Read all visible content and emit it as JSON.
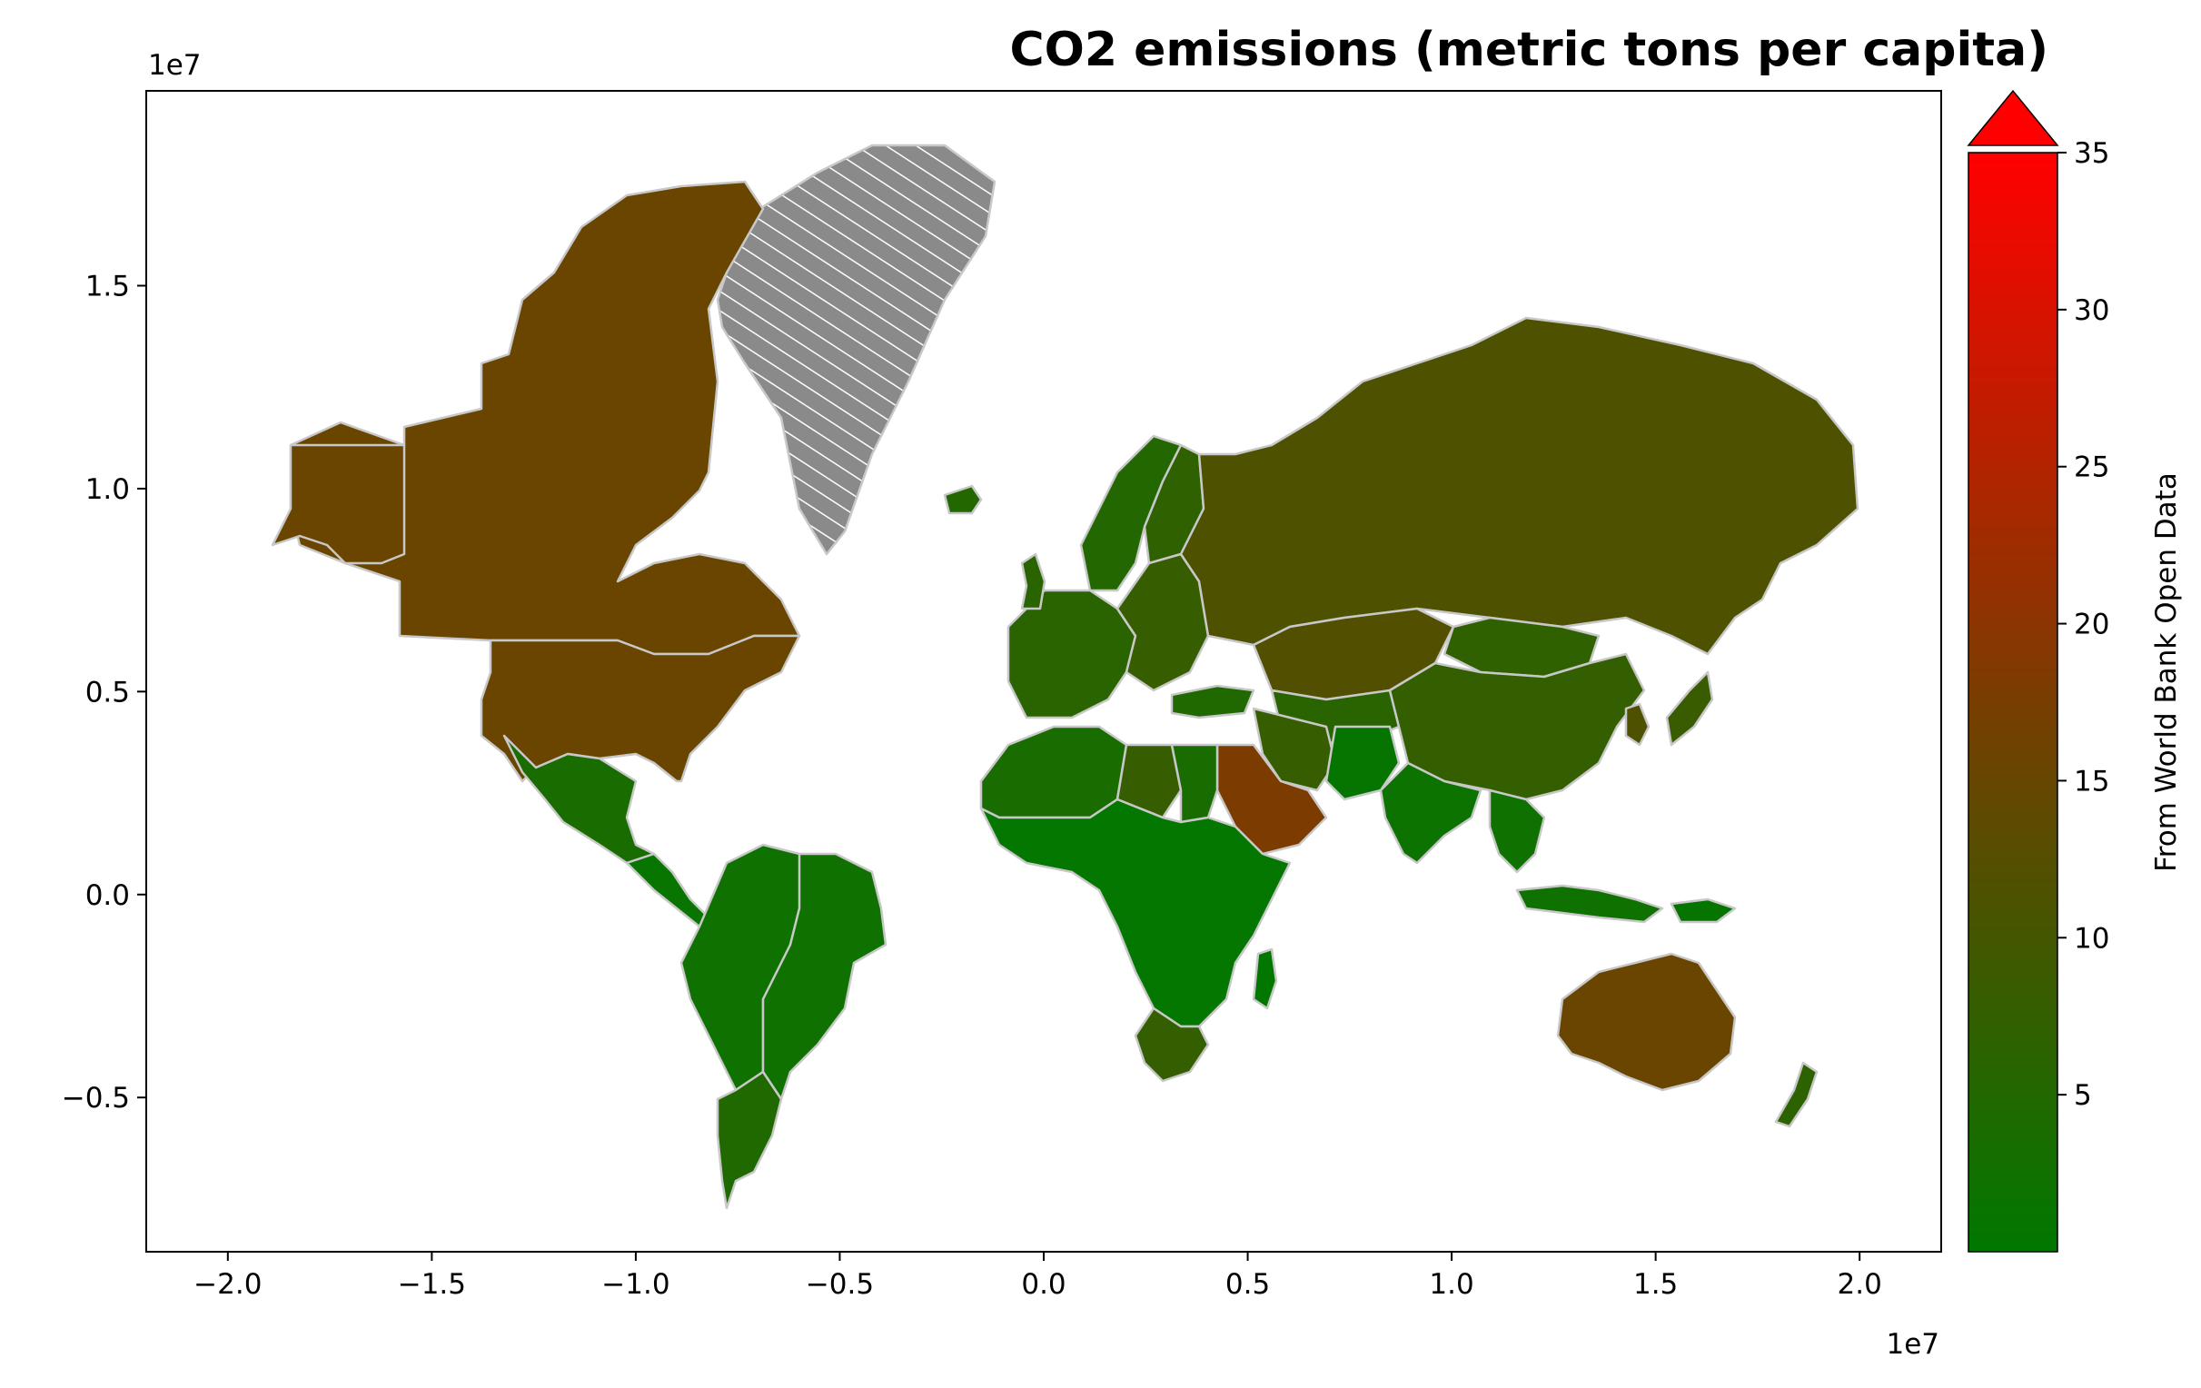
{
  "chart_data": {
    "type": "choropleth",
    "title": "CO2 emissions (metric tons per capita)",
    "colorbar_label": "From World Bank Open Data",
    "colorbar": {
      "min": 0,
      "max": 35,
      "ticks": [
        "5",
        "10",
        "15",
        "20",
        "25",
        "30",
        "35"
      ],
      "extend": "max",
      "colors": [
        "#007800",
        "#6b4400",
        "#ff0000"
      ]
    },
    "x_axis": {
      "ticks": [
        "−2.0",
        "−1.5",
        "−1.0",
        "−0.5",
        "0.0",
        "0.5",
        "1.0",
        "1.5",
        "2.0"
      ],
      "multiplier": "1e7"
    },
    "y_axis": {
      "ticks": [
        "−0.5",
        "0.0",
        "0.5",
        "1.0",
        "1.5"
      ],
      "multiplier": "1e7"
    },
    "missing_data_style": "gray with white diagonal hatching",
    "regions": [
      {
        "name": "Canada",
        "value": 15.5
      },
      {
        "name": "United States",
        "value": 15.5
      },
      {
        "name": "Greenland",
        "value": null
      },
      {
        "name": "Mexico",
        "value": 3.6
      },
      {
        "name": "Central America",
        "value": 1.0
      },
      {
        "name": "Brazil",
        "value": 2.2
      },
      {
        "name": "South America (west)",
        "value": 2.0
      },
      {
        "name": "Argentina & Chile",
        "value": 4.5
      },
      {
        "name": "Iceland",
        "value": 5.0
      },
      {
        "name": "Norway & Sweden",
        "value": 5.0
      },
      {
        "name": "Finland",
        "value": 7.0
      },
      {
        "name": "Western Europe",
        "value": 6.0
      },
      {
        "name": "Eastern Europe",
        "value": 8.0
      },
      {
        "name": "Russia",
        "value": 11.5
      },
      {
        "name": "Kazakhstan",
        "value": 12.0
      },
      {
        "name": "Central Asia",
        "value": 6.0
      },
      {
        "name": "Mongolia",
        "value": 7.0
      },
      {
        "name": "China",
        "value": 7.5
      },
      {
        "name": "Japan",
        "value": 8.5
      },
      {
        "name": "Korea",
        "value": 11.5
      },
      {
        "name": "Turkey",
        "value": 4.5
      },
      {
        "name": "Iran",
        "value": 8.0
      },
      {
        "name": "Saudi Arabia & Gulf",
        "value": 18.0
      },
      {
        "name": "India",
        "value": 1.8
      },
      {
        "name": "Pakistan & Afghanistan",
        "value": 0.9
      },
      {
        "name": "Southeast Asia",
        "value": 2.0
      },
      {
        "name": "Indonesia",
        "value": 2.2
      },
      {
        "name": "Papua New Guinea",
        "value": 0.8
      },
      {
        "name": "Australia",
        "value": 15.5
      },
      {
        "name": "New Zealand",
        "value": 6.5
      },
      {
        "name": "North Africa",
        "value": 3.5
      },
      {
        "name": "Libya",
        "value": 8.0
      },
      {
        "name": "Sub-Saharan Africa",
        "value": 0.4
      },
      {
        "name": "South Africa",
        "value": 7.5
      },
      {
        "name": "Madagascar",
        "value": 0.2
      }
    ]
  }
}
